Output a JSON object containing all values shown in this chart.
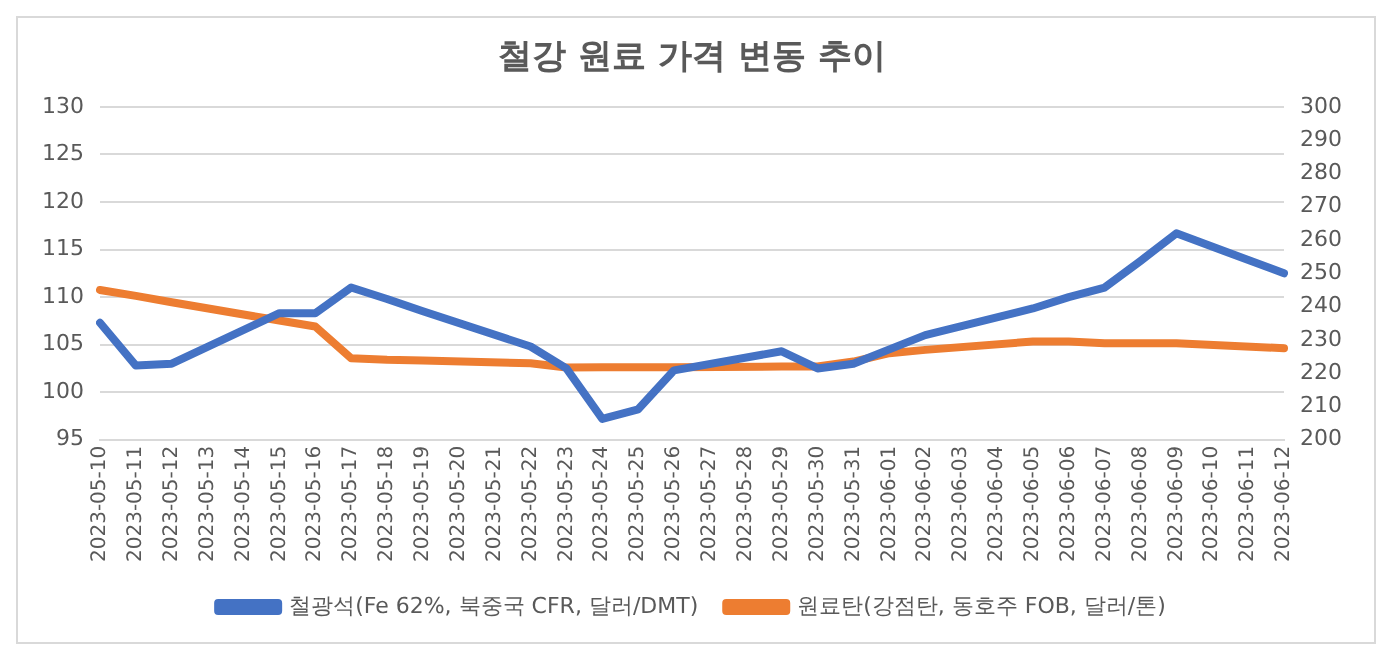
{
  "chart_data": {
    "type": "line",
    "title": "철강 원료 가격 변동 추이",
    "categories": [
      "2023-05-10",
      "2023-05-11",
      "2023-05-12",
      "2023-05-13",
      "2023-05-14",
      "2023-05-15",
      "2023-05-16",
      "2023-05-17",
      "2023-05-18",
      "2023-05-19",
      "2023-05-20",
      "2023-05-21",
      "2023-05-22",
      "2023-05-23",
      "2023-05-24",
      "2023-05-25",
      "2023-05-26",
      "2023-05-27",
      "2023-05-28",
      "2023-05-29",
      "2023-05-30",
      "2023-05-31",
      "2023-06-01",
      "2023-06-02",
      "2023-06-03",
      "2023-06-04",
      "2023-06-05",
      "2023-06-06",
      "2023-06-07",
      "2023-06-08",
      "2023-06-09",
      "2023-06-10",
      "2023-06-11",
      "2023-06-12"
    ],
    "series": [
      {
        "name": "철광석(Fe 62%, 북중국 CFR, 달러/DMT)",
        "color": "#4472c4",
        "values": [
          107.3,
          102.8,
          103,
          null,
          null,
          108.3,
          108.3,
          111,
          109.8,
          108.5,
          null,
          null,
          104.8,
          102.5,
          97.2,
          98.2,
          102.3,
          null,
          null,
          104.3,
          102.5,
          103,
          104.5,
          106,
          null,
          null,
          108.8,
          110,
          111,
          113.8,
          116.7,
          null,
          null,
          112.5
        ]
      },
      {
        "name": "원료탄(강점탄, 동호주 FOB, 달러/톤)",
        "color": "#ed7d31",
        "axis": "y2",
        "values": [
          245,
          243.2,
          241.3,
          null,
          null,
          235.8,
          234,
          224.5,
          224,
          223.8,
          null,
          null,
          223,
          221.7,
          221.8,
          221.8,
          221.8,
          null,
          null,
          222,
          222,
          223.5,
          226,
          227,
          null,
          null,
          229.5,
          229.5,
          229,
          229,
          229,
          null,
          null,
          227.5
        ]
      }
    ],
    "ylim": [
      95,
      130
    ],
    "yticks": [
      95,
      100,
      105,
      110,
      115,
      120,
      125,
      130
    ],
    "y2lim": [
      200,
      300
    ],
    "y2ticks": [
      200,
      210,
      220,
      230,
      240,
      250,
      260,
      270,
      280,
      290,
      300
    ],
    "grid": "y",
    "legend": "bottom",
    "marker": "none",
    "line_style": "solid"
  }
}
